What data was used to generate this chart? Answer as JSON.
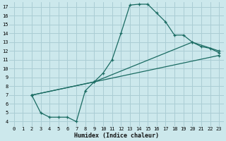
{
  "xlabel": "Humidex (Indice chaleur)",
  "bg_color": "#cce8ec",
  "grid_color": "#aacdd4",
  "line_color": "#1a6b62",
  "xlim": [
    -0.5,
    23.5
  ],
  "ylim": [
    3.5,
    17.5
  ],
  "xticks": [
    0,
    1,
    2,
    3,
    4,
    5,
    6,
    7,
    8,
    9,
    10,
    11,
    12,
    13,
    14,
    15,
    16,
    17,
    18,
    19,
    20,
    21,
    22,
    23
  ],
  "yticks": [
    4,
    5,
    6,
    7,
    8,
    9,
    10,
    11,
    12,
    13,
    14,
    15,
    16,
    17
  ],
  "line1_x": [
    2,
    3,
    4,
    5,
    6,
    7,
    8,
    9,
    10,
    11,
    12,
    13,
    14,
    15,
    16,
    17,
    18,
    19,
    20,
    21,
    22,
    23
  ],
  "line1_y": [
    7,
    5,
    4.5,
    4.5,
    4.5,
    4.0,
    7.5,
    8.5,
    9.5,
    11,
    14,
    17.2,
    17.3,
    17.3,
    16.3,
    15.3,
    13.8,
    13.8,
    13,
    12.5,
    12.3,
    11.8
  ],
  "line2_x": [
    2,
    23
  ],
  "line2_y": [
    7,
    11.5
  ],
  "line3_x": [
    2,
    9,
    20,
    23
  ],
  "line3_y": [
    7,
    8.5,
    13,
    12
  ]
}
